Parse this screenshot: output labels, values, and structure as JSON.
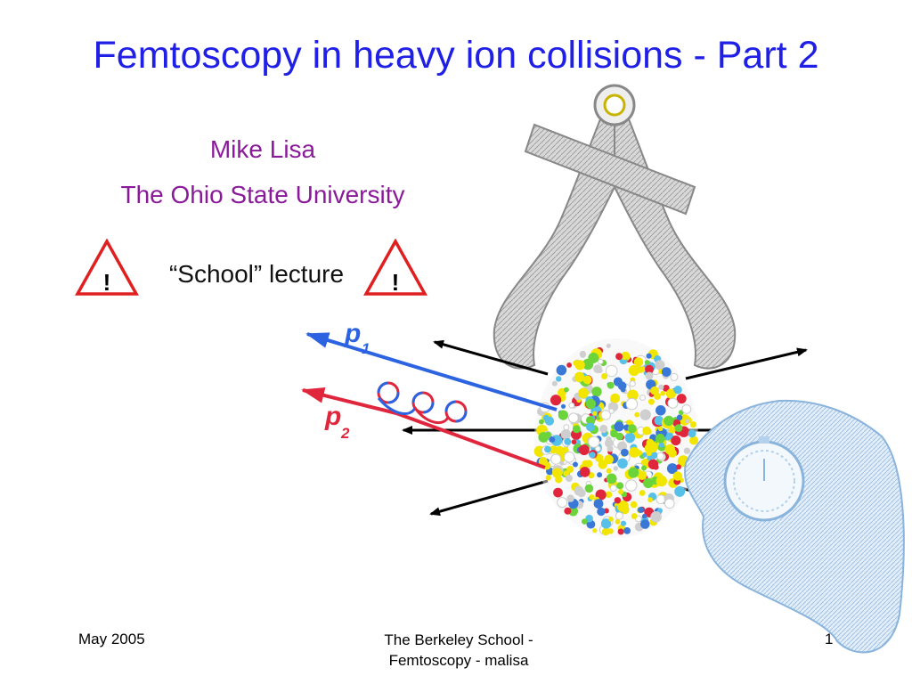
{
  "slide": {
    "title": "Femtoscopy in heavy ion collisions - Part 2",
    "author": "Mike Lisa",
    "affiliation": "The Ohio State University",
    "warning_text": "“School” lecture",
    "warning_mark": "!",
    "p1_label": "p",
    "p1_sub": "1",
    "p2_label": "p",
    "p2_sub": "2"
  },
  "footer": {
    "date": "May 2005",
    "center_line1": "The Berkeley School -",
    "center_line2": "Femtoscopy - malisa",
    "page_number": "1"
  },
  "colors": {
    "title": "#1f1fe6",
    "author": "#8a1a9a",
    "p1": "#2b63e0",
    "p2": "#e0263c",
    "warning": "#e02020"
  },
  "icons": {
    "warning": "warning-triangle-icon",
    "caliper": "caliper-icon",
    "stopwatch_hand": "stopwatch-hand-icon"
  }
}
